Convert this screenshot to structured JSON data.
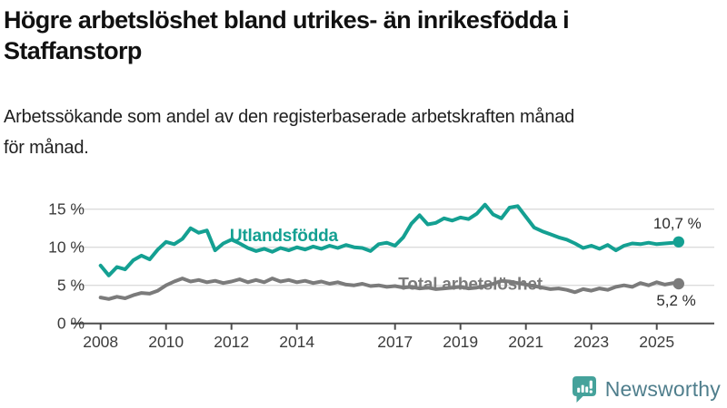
{
  "header": {
    "title_lines": [
      "Högre arbetslöshet bland utrikes- än inrikesfödda i",
      "Staffanstorp"
    ],
    "subtitle_lines": [
      "Arbetssökande som andel av den registerbaserade arbetskraften månad",
      "för månad."
    ]
  },
  "colors": {
    "teal": "#14A092",
    "gray": "#7B7B7B",
    "grid": "#DBDBDB",
    "axis": "#4D4D4D",
    "tick_text": "#3C3C3C",
    "value_text": "#2B2B2B",
    "logo_teal": "#45A29B",
    "brand_text": "#4F7E8C"
  },
  "chart_data": {
    "type": "line",
    "title": "Högre arbetslöshet bland utrikes- än inrikesfödda i Staffanstorp",
    "subtitle": "Arbetssökande som andel av den registerbaserade arbetskraften månad för månad.",
    "xlabel": "",
    "ylabel": "",
    "ylim": [
      0,
      15.9
    ],
    "xlim": [
      2007.1,
      2026.8
    ],
    "grid": true,
    "legend_position": "inline-labels",
    "y_ticks": [
      0,
      5,
      10,
      15
    ],
    "y_tick_labels": [
      "0 %",
      "5 %",
      "10 %",
      "15 %"
    ],
    "x_label_years": [
      2008,
      2010,
      2012,
      2014,
      2017,
      2019,
      2021,
      2023,
      2025
    ],
    "x_tick_labels": [
      "2008",
      "2010",
      "2012",
      "2014",
      "2017",
      "2019",
      "2021",
      "2023",
      "2025"
    ],
    "x": [
      2008,
      2008.25,
      2008.5,
      2008.75,
      2009,
      2009.25,
      2009.5,
      2009.75,
      2010,
      2010.25,
      2010.5,
      2010.75,
      2011,
      2011.25,
      2011.5,
      2011.75,
      2012,
      2012.25,
      2012.5,
      2012.75,
      2013,
      2013.25,
      2013.5,
      2013.75,
      2014,
      2014.25,
      2014.5,
      2014.75,
      2015,
      2015.25,
      2015.5,
      2015.75,
      2016,
      2016.25,
      2016.5,
      2016.75,
      2017,
      2017.25,
      2017.5,
      2017.75,
      2018,
      2018.25,
      2018.5,
      2018.75,
      2019,
      2019.25,
      2019.5,
      2019.75,
      2020,
      2020.25,
      2020.5,
      2020.75,
      2021,
      2021.25,
      2021.5,
      2021.75,
      2022,
      2022.25,
      2022.5,
      2022.75,
      2023,
      2023.25,
      2023.5,
      2023.75,
      2024,
      2024.25,
      2024.5,
      2024.75,
      2025,
      2025.25,
      2025.5,
      2025.67
    ],
    "series": [
      {
        "name": "Utlandsfödda",
        "color": "#14A092",
        "end_value_label": "10,7 %",
        "end_value": 10.7,
        "value_label_side": "above",
        "label_x": 2011.95,
        "label_y": 10.8,
        "values": [
          7.6,
          6.3,
          7.4,
          7.1,
          8.3,
          8.9,
          8.4,
          9.7,
          10.7,
          10.4,
          11.1,
          12.5,
          11.9,
          12.2,
          9.6,
          10.5,
          11.0,
          10.5,
          9.9,
          9.5,
          9.8,
          9.4,
          9.9,
          9.6,
          10.0,
          9.7,
          10.1,
          9.8,
          10.2,
          9.9,
          10.3,
          10.0,
          9.9,
          9.5,
          10.4,
          10.6,
          10.2,
          11.3,
          13.1,
          14.2,
          13.0,
          13.2,
          13.8,
          13.5,
          13.9,
          13.7,
          14.4,
          15.6,
          14.3,
          13.8,
          15.2,
          15.4,
          14.0,
          12.6,
          12.1,
          11.7,
          11.3,
          11.0,
          10.5,
          9.9,
          10.2,
          9.8,
          10.3,
          9.6,
          10.2,
          10.5,
          10.4,
          10.6,
          10.4,
          10.5,
          10.6,
          10.7
        ]
      },
      {
        "name": "Total arbetslöshet",
        "color": "#7B7B7B",
        "end_value_label": "5,2 %",
        "end_value": 5.2,
        "value_label_side": "below",
        "label_x": 2017.1,
        "label_y": 4.4,
        "values": [
          3.4,
          3.2,
          3.5,
          3.3,
          3.7,
          4.0,
          3.9,
          4.3,
          5.0,
          5.5,
          5.9,
          5.5,
          5.7,
          5.4,
          5.6,
          5.3,
          5.5,
          5.8,
          5.4,
          5.7,
          5.4,
          5.9,
          5.5,
          5.7,
          5.4,
          5.6,
          5.3,
          5.5,
          5.2,
          5.4,
          5.1,
          5.0,
          5.2,
          4.9,
          5.0,
          4.8,
          4.9,
          4.7,
          4.8,
          4.6,
          4.7,
          4.5,
          4.6,
          4.7,
          4.8,
          4.6,
          4.7,
          4.9,
          5.2,
          5.6,
          5.5,
          5.3,
          5.1,
          4.9,
          4.7,
          4.5,
          4.6,
          4.4,
          4.1,
          4.5,
          4.3,
          4.6,
          4.4,
          4.8,
          5.0,
          4.8,
          5.3,
          5.0,
          5.4,
          5.1,
          5.3,
          5.2
        ]
      }
    ]
  },
  "footer": {
    "brand": "Newsworthy"
  }
}
